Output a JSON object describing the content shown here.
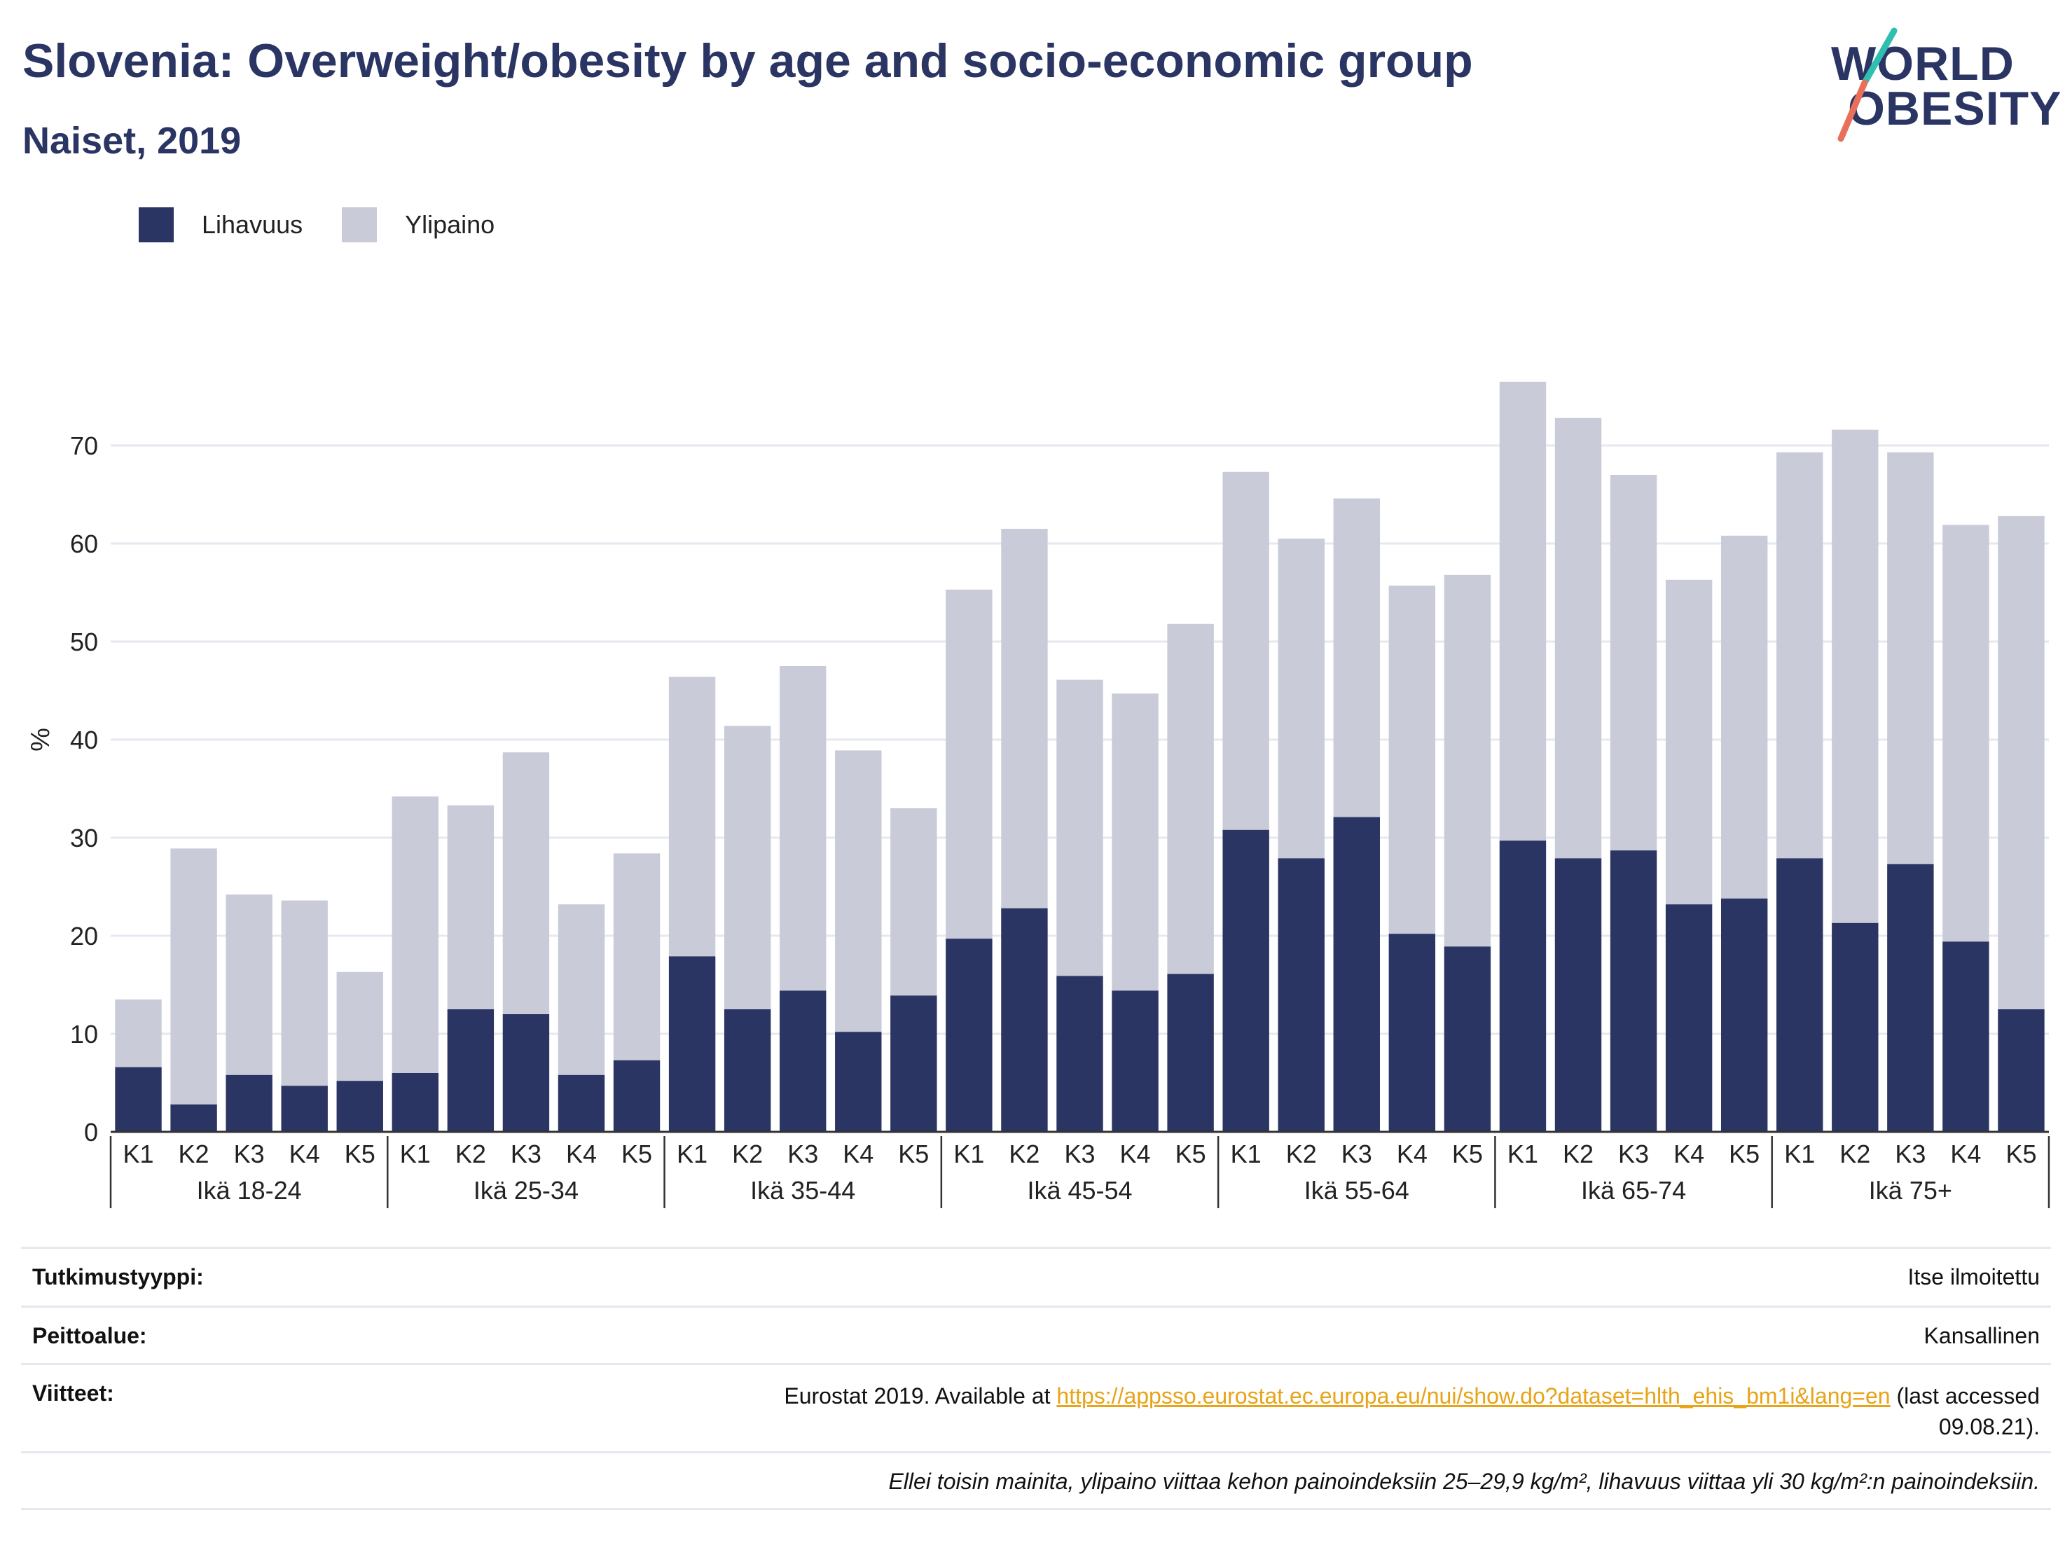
{
  "header": {
    "title": "Slovenia: Overweight/obesity by age and socio-economic group",
    "subtitle": "Naiset, 2019"
  },
  "logo": {
    "line1": "WORLD",
    "line2": "OBESITY"
  },
  "colors": {
    "obesity": "#2a3563",
    "overweight": "#c9ccd8",
    "grid": "#e6e8f0",
    "logo_teal": "#2fbfb0",
    "logo_coral": "#e8705a"
  },
  "chart_data": {
    "type": "bar",
    "stacked": true,
    "ylabel": "%",
    "ylim": [
      0,
      78
    ],
    "yticks": [
      0,
      10,
      20,
      30,
      40,
      50,
      60,
      70
    ],
    "grid": true,
    "legend_position": "top-left",
    "groups": [
      "Ikä 18-24",
      "Ikä 25-34",
      "Ikä 35-44",
      "Ikä 45-54",
      "Ikä 55-64",
      "Ikä 65-74",
      "Ikä 75+"
    ],
    "categories": [
      "K1",
      "K2",
      "K3",
      "K4",
      "K5"
    ],
    "series": [
      {
        "name": "Lihavuus",
        "values": [
          [
            6.6,
            2.8,
            5.8,
            4.7,
            5.2
          ],
          [
            6.0,
            12.5,
            12.0,
            5.8,
            7.3
          ],
          [
            17.9,
            12.5,
            14.4,
            10.2,
            13.9
          ],
          [
            19.7,
            22.8,
            15.9,
            14.4,
            16.1
          ],
          [
            30.8,
            27.9,
            32.1,
            20.2,
            18.9
          ],
          [
            29.7,
            27.9,
            28.7,
            23.2,
            23.8
          ],
          [
            27.9,
            21.3,
            27.3,
            19.4,
            12.5
          ]
        ]
      },
      {
        "name": "Ylipaino",
        "values": [
          [
            6.9,
            26.1,
            18.4,
            18.9,
            11.1
          ],
          [
            28.2,
            20.8,
            26.7,
            17.4,
            21.1
          ],
          [
            28.5,
            28.9,
            33.1,
            28.7,
            19.1
          ],
          [
            35.6,
            38.7,
            30.2,
            30.3,
            35.7
          ],
          [
            36.5,
            32.6,
            32.5,
            35.5,
            37.9
          ],
          [
            46.8,
            44.9,
            38.3,
            33.1,
            37.0
          ],
          [
            41.4,
            50.3,
            42.0,
            42.5,
            50.3
          ]
        ]
      }
    ]
  },
  "info": {
    "study_type_label": "Tutkimustyyppi:",
    "study_type_value": "Itse ilmoitettu",
    "coverage_label": "Peittoalue:",
    "coverage_value": "Kansallinen",
    "refs_label": "Viitteet:",
    "refs_prefix": "Eurostat 2019. Available at ",
    "refs_link": "https://appsso.eurostat.ec.europa.eu/nui/show.do?dataset=hlth_ehis_bm1i&lang=en",
    "refs_suffix_1": " (last accessed",
    "refs_suffix_2": "09.08.21).",
    "note": "Ellei toisin mainita, ylipaino viittaa kehon painoindeksiin 25–29,9 kg/m², lihavuus viittaa yli 30 kg/m²:n painoindeksiin."
  }
}
